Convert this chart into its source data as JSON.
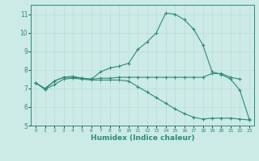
{
  "xlabel": "Humidex (Indice chaleur)",
  "x": [
    0,
    1,
    2,
    3,
    4,
    5,
    6,
    7,
    8,
    9,
    10,
    11,
    12,
    13,
    14,
    15,
    16,
    17,
    18,
    19,
    20,
    21,
    22,
    23
  ],
  "line1": [
    7.3,
    6.95,
    7.4,
    7.6,
    7.6,
    7.55,
    7.5,
    7.9,
    8.1,
    8.2,
    8.35,
    9.1,
    9.5,
    10.0,
    11.05,
    11.0,
    10.7,
    10.2,
    9.35,
    7.9,
    7.75,
    7.5,
    6.9,
    5.35
  ],
  "line2": [
    7.3,
    7.0,
    7.4,
    7.6,
    7.65,
    7.55,
    7.5,
    7.55,
    7.55,
    7.6,
    7.6,
    7.6,
    7.6,
    7.6,
    7.6,
    7.6,
    7.6,
    7.6,
    7.6,
    7.8,
    7.8,
    7.6,
    7.5,
    null
  ],
  "line3": [
    7.3,
    6.95,
    7.2,
    7.5,
    7.55,
    7.5,
    7.45,
    7.45,
    7.45,
    7.45,
    7.4,
    7.1,
    6.8,
    6.5,
    6.2,
    5.9,
    5.65,
    5.45,
    5.35,
    5.4,
    5.4,
    5.4,
    5.35,
    5.3
  ],
  "line_color": "#2e8b77",
  "bg_color": "#cceae6",
  "grid_color": "#b8dcd8",
  "ylim": [
    5.0,
    11.5
  ],
  "yticks": [
    5,
    6,
    7,
    8,
    9,
    10,
    11
  ],
  "xlim": [
    -0.5,
    23.5
  ],
  "xtick_labels": [
    "0",
    "1",
    "2",
    "3",
    "4",
    "5",
    "6",
    "7",
    "8",
    "9",
    "10",
    "11",
    "12",
    "13",
    "14",
    "15",
    "16",
    "17",
    "18",
    "19",
    "20",
    "21",
    "22",
    "23"
  ]
}
